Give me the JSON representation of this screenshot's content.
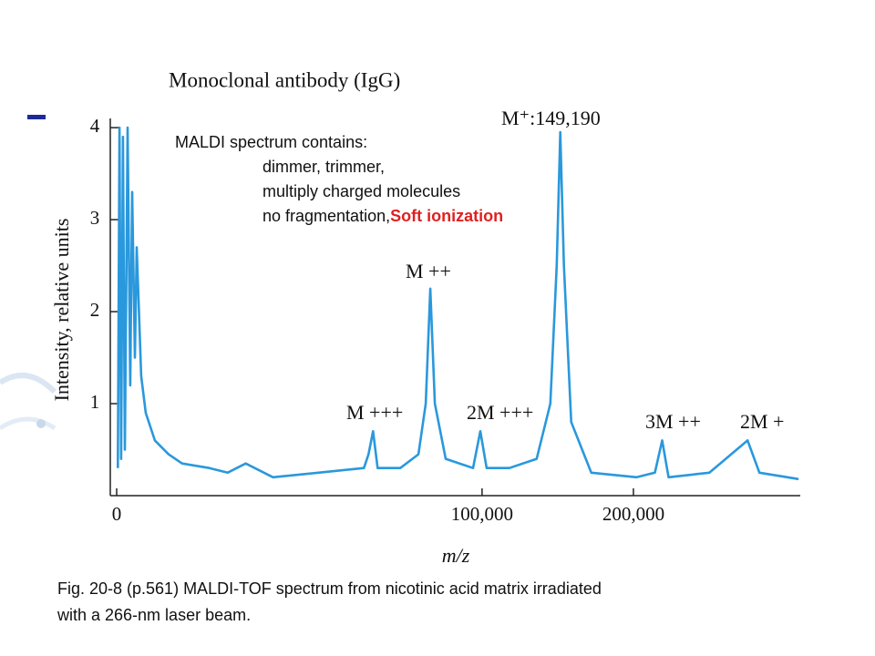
{
  "chart_data": {
    "type": "line",
    "title": "Monoclonal antibody (IgG)",
    "x_label": "m/z",
    "y_label": "Intensity, relative units",
    "xscale": "sqrt",
    "xlim": [
      0,
      350000
    ],
    "ylim": [
      0,
      4.1
    ],
    "xticks": [
      0,
      {
        "value": 100000,
        "label": "100,000"
      },
      {
        "value": 200000,
        "label": "200,000"
      }
    ],
    "yticks": [
      1,
      2,
      3,
      4
    ],
    "color": "#2a98dc",
    "x": [
      1,
      6,
      15,
      30,
      50,
      89,
      139,
      179,
      248,
      300,
      451,
      634,
      1092,
      2011,
      3209,
      6440,
      9210,
      12480,
      18310,
      30510,
      45800,
      47490,
      49230,
      51000,
      60270,
      68230,
      71560,
      73660,
      75850,
      81110,
      95110,
      99040,
      102530,
      115530,
      132130,
      140850,
      145010,
      147380,
      149850,
      154760,
      168670,
      202500,
      216970,
      222880,
      228100,
      263170,
      298120,
      309470,
      348220
    ],
    "values": [
      0.3,
      4.0,
      0.4,
      3.9,
      0.5,
      4.0,
      1.2,
      3.3,
      1.5,
      2.7,
      1.3,
      0.9,
      0.6,
      0.45,
      0.35,
      0.3,
      0.25,
      0.35,
      0.2,
      0.25,
      0.3,
      0.45,
      0.7,
      0.3,
      0.3,
      0.45,
      1.0,
      2.25,
      1.0,
      0.4,
      0.3,
      0.7,
      0.3,
      0.3,
      0.4,
      1.0,
      2.5,
      3.95,
      2.5,
      0.8,
      0.25,
      0.2,
      0.25,
      0.6,
      0.2,
      0.25,
      0.6,
      0.25,
      0.18
    ],
    "annotations": [
      "M⁺:149,190",
      "M ++",
      "M +++",
      "2M +++",
      "3M ++",
      "2M +"
    ],
    "callout": {
      "heading": "MALDI spectrum contains:",
      "lines": [
        "dimmer, trimmer,",
        "multiply charged molecules",
        "no fragmentation, "
      ],
      "highlight": "Soft ionization"
    },
    "caption": [
      "Fig. 20-8 (p.561)  MALDI-TOF spectrum from nicotinic acid matrix irradiated",
      "with a 266-nm laser beam."
    ]
  }
}
